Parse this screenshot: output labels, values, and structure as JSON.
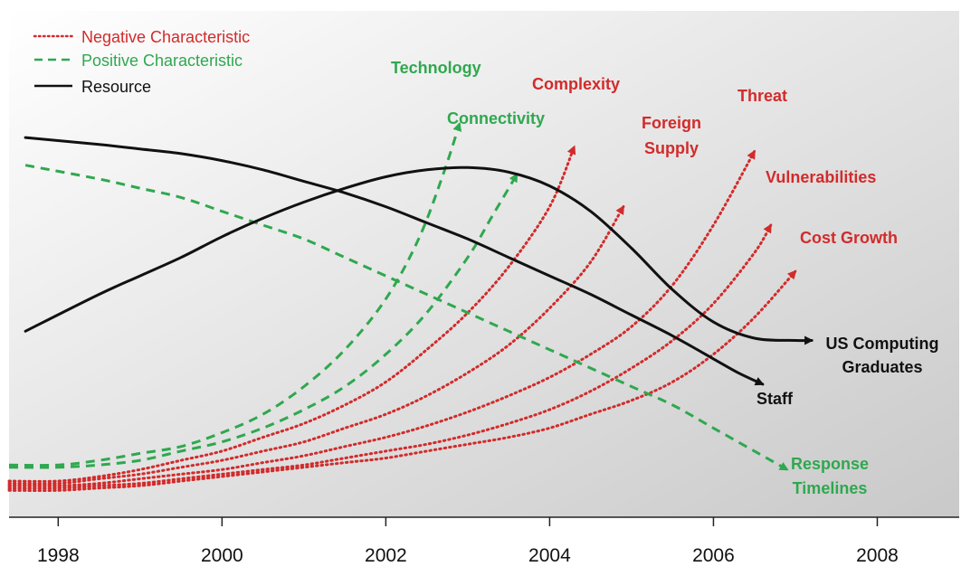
{
  "chart_data": {
    "type": "line",
    "title": "",
    "xlabel": "",
    "ylabel": "",
    "x_ticks": [
      "1998",
      "2000",
      "2002",
      "2004",
      "2006",
      "2008"
    ],
    "xlim": [
      1997.4,
      2009.0
    ],
    "ylim": [
      0,
      100
    ],
    "grid": false,
    "legend_position": "top-left",
    "colors": {
      "negative": "#d22b2b",
      "positive": "#2fa84f",
      "resource": "#111111",
      "background_light": "#ffffff",
      "background_dark": "#c9c9c9"
    },
    "legend": [
      {
        "label": "Negative Characteristic",
        "style": "dotted",
        "color": "#d22b2b"
      },
      {
        "label": "Positive Characteristic",
        "style": "dashed",
        "color": "#2fa84f"
      },
      {
        "label": "Resource",
        "style": "solid",
        "color": "#111111"
      }
    ],
    "series": [
      {
        "name": "Technology",
        "category": "positive",
        "x": [
          1997.4,
          1998.0,
          1998.5,
          1999.0,
          1999.5,
          2000.0,
          2000.5,
          2001.0,
          2001.5,
          2002.0,
          2002.4,
          2002.7,
          2002.9
        ],
        "y": [
          8,
          8,
          9,
          10.5,
          12,
          15,
          19,
          25,
          33,
          44,
          57,
          71,
          82
        ]
      },
      {
        "name": "Connectivity",
        "category": "positive",
        "x": [
          1997.4,
          1998.0,
          1998.5,
          1999.0,
          1999.5,
          2000.0,
          2000.5,
          2001.0,
          2001.5,
          2002.0,
          2002.5,
          2003.0,
          2003.3,
          2003.6
        ],
        "y": [
          7.5,
          7.5,
          8,
          9,
          11,
          13,
          16,
          20,
          25,
          32,
          41,
          53,
          62,
          71
        ]
      },
      {
        "name": "Complexity",
        "category": "negative",
        "x": [
          1997.4,
          1998.0,
          1998.5,
          1999.0,
          1999.5,
          2000.0,
          2000.5,
          2001.0,
          2001.5,
          2002.0,
          2002.5,
          2003.0,
          2003.5,
          2004.0,
          2004.3
        ],
        "y": [
          4.5,
          4.5,
          5.5,
          7,
          9,
          11,
          14,
          17,
          21,
          26,
          33,
          41,
          51,
          64,
          77
        ]
      },
      {
        "name": "Foreign Supply",
        "category": "negative",
        "x": [
          1997.4,
          1998.0,
          1998.5,
          1999.0,
          1999.5,
          2000.0,
          2000.5,
          2001.0,
          2001.5,
          2002.0,
          2002.5,
          2003.0,
          2003.5,
          2004.0,
          2004.5,
          2004.9
        ],
        "y": [
          4,
          4,
          5,
          6,
          7.5,
          9,
          11,
          13,
          16,
          19,
          23,
          28,
          34,
          42,
          52,
          64
        ]
      },
      {
        "name": "Threat",
        "category": "negative",
        "x": [
          1997.4,
          1998.0,
          1998.5,
          1999.0,
          1999.5,
          2000.0,
          2000.5,
          2001.0,
          2001.5,
          2002.0,
          2002.5,
          2003.0,
          2003.5,
          2004.0,
          2004.5,
          2005.0,
          2005.5,
          2006.0,
          2006.5
        ],
        "y": [
          3.5,
          3.5,
          4,
          5,
          6,
          7,
          8.5,
          10,
          12,
          14,
          16.5,
          19.5,
          23,
          27,
          32,
          38,
          47,
          60,
          76
        ]
      },
      {
        "name": "Vulnerabilities",
        "category": "negative",
        "x": [
          1997.4,
          1998.0,
          1998.5,
          1999.0,
          1999.5,
          2000.0,
          2000.5,
          2001.0,
          2001.5,
          2002.0,
          2002.5,
          2003.0,
          2003.5,
          2004.0,
          2004.5,
          2005.0,
          2005.5,
          2006.0,
          2006.5,
          2006.7
        ],
        "y": [
          3,
          3,
          3.5,
          4,
          5,
          6,
          7,
          8,
          9.5,
          11,
          12.5,
          14.5,
          17,
          20,
          24,
          29,
          35,
          43,
          54,
          60
        ]
      },
      {
        "name": "Cost Growth",
        "category": "negative",
        "x": [
          1997.4,
          1998.0,
          1998.5,
          1999.0,
          1999.5,
          2000.0,
          2000.5,
          2001.0,
          2001.5,
          2002.0,
          2002.5,
          2003.0,
          2003.5,
          2004.0,
          2004.5,
          2005.0,
          2005.5,
          2006.0,
          2006.5,
          2007.0
        ],
        "y": [
          2.5,
          2.5,
          3,
          3.5,
          4.5,
          5.5,
          6.5,
          7.5,
          8.5,
          9.5,
          11,
          12.5,
          14,
          16,
          19,
          22,
          26,
          32,
          40,
          50
        ]
      },
      {
        "name": "Response Timelines",
        "category": "positive",
        "x": [
          1997.6,
          1998.5,
          1999.0,
          1999.5,
          2000.0,
          2000.5,
          2001.0,
          2001.5,
          2002.0,
          2002.5,
          2003.0,
          2003.5,
          2004.0,
          2004.5,
          2005.0,
          2005.5,
          2006.0,
          2006.5,
          2006.9
        ],
        "y": [
          73,
          70,
          68,
          66,
          63,
          60,
          57,
          53,
          49,
          45,
          41,
          37,
          33,
          29,
          25,
          21,
          16,
          11,
          7
        ]
      },
      {
        "name": "Staff",
        "category": "resource",
        "x": [
          1997.6,
          1998.5,
          1999.0,
          1999.5,
          2000.0,
          2000.5,
          2001.0,
          2001.5,
          2002.0,
          2002.5,
          2003.0,
          2003.5,
          2004.0,
          2004.5,
          2005.0,
          2005.5,
          2006.0,
          2006.3,
          2006.6
        ],
        "y": [
          79,
          77.5,
          76.5,
          75.5,
          74,
          72,
          69.5,
          67,
          64,
          60.5,
          57,
          53,
          49,
          45,
          40.5,
          36,
          31,
          28,
          25.5
        ]
      },
      {
        "name": "US Computing Graduates",
        "category": "resource",
        "x": [
          1997.6,
          1998.5,
          1999.0,
          1999.5,
          2000.0,
          2000.5,
          2001.0,
          2001.5,
          2002.0,
          2002.5,
          2003.0,
          2003.5,
          2004.0,
          2004.5,
          2005.0,
          2005.5,
          2006.0,
          2006.5,
          2007.0,
          2007.2
        ],
        "y": [
          37,
          45,
          49,
          53,
          57.5,
          61.5,
          65,
          68,
          70.5,
          72,
          72.5,
          71.5,
          68.5,
          63,
          55,
          46,
          39,
          35.5,
          35,
          35
        ]
      }
    ]
  }
}
